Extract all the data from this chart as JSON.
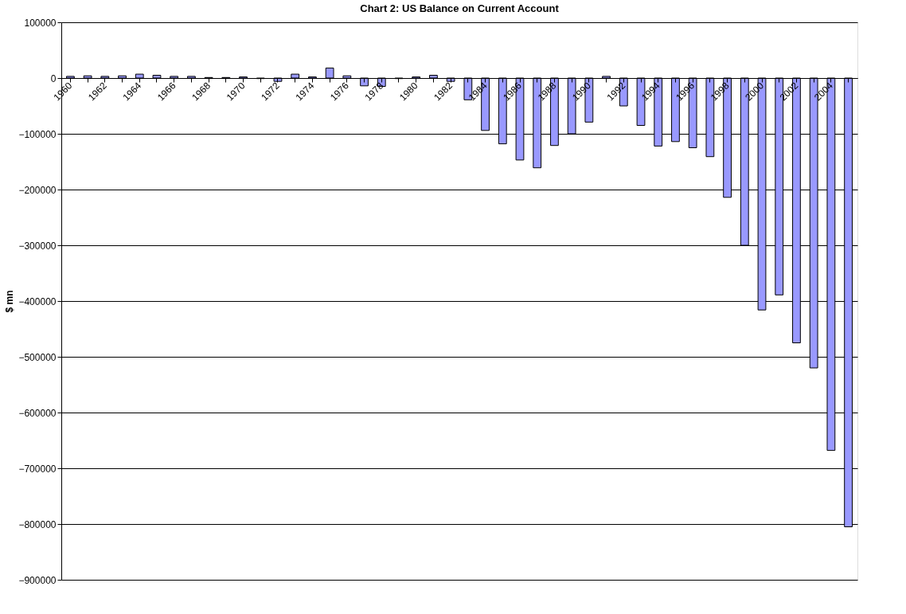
{
  "chart_data": {
    "type": "bar",
    "title": "Chart 2: US Balance on Current Account",
    "ylabel": "$ mn",
    "categories": [
      "1960",
      null,
      "1962",
      null,
      "1964",
      null,
      "1966",
      null,
      "1968",
      null,
      "1970",
      null,
      "1972",
      null,
      "1974",
      null,
      "1976",
      null,
      "1978",
      null,
      "1980",
      null,
      "1982",
      null,
      "1984",
      null,
      "1986",
      null,
      "1988",
      null,
      "1990",
      null,
      "1992",
      null,
      "1994",
      null,
      "1996",
      null,
      "1998",
      null,
      "2000",
      null,
      "2002",
      null,
      "2004",
      null
    ],
    "values": [
      3000,
      4000,
      3000,
      4000,
      7000,
      5000,
      3000,
      3000,
      1000,
      1000,
      2000,
      -1000,
      -6000,
      7000,
      2000,
      18000,
      4000,
      -14000,
      -15000,
      -1000,
      2000,
      5000,
      -6000,
      -39000,
      -94000,
      -118000,
      -147000,
      -161000,
      -121000,
      -100000,
      -79000,
      3000,
      -50000,
      -85000,
      -122000,
      -114000,
      -125000,
      -141000,
      -214000,
      -300000,
      -416000,
      -389000,
      -475000,
      -520000,
      -668000,
      -805000
    ],
    "color": "#9999ff",
    "ylim": [
      -900000,
      100000
    ],
    "yticks": [
      -900000,
      -800000,
      -700000,
      -600000,
      -500000,
      -400000,
      -300000,
      -200000,
      -100000,
      0,
      100000
    ],
    "grid": "y"
  }
}
